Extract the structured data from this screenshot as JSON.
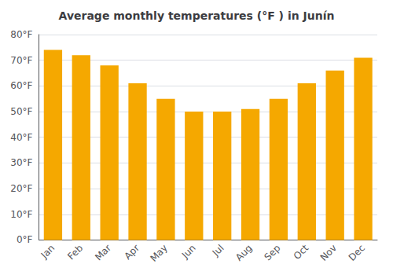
{
  "chart_data": {
    "type": "bar",
    "title": "Average monthly temperatures (°F ) in Junín",
    "categories": [
      "Jan",
      "Feb",
      "Mar",
      "Apr",
      "May",
      "Jun",
      "Jul",
      "Aug",
      "Sep",
      "Oct",
      "Nov",
      "Dec"
    ],
    "values": [
      74,
      72,
      68,
      61,
      55,
      50,
      50,
      51,
      55,
      61,
      66,
      71
    ],
    "color": "#F5A800",
    "ylim": [
      0,
      80
    ],
    "yticks": [
      {
        "value": 0,
        "label": "0°F"
      },
      {
        "value": 10,
        "label": "10°F"
      },
      {
        "value": 20,
        "label": "20°F"
      },
      {
        "value": 30,
        "label": "30°F"
      },
      {
        "value": 40,
        "label": "40°F"
      },
      {
        "value": 50,
        "label": "50°F"
      },
      {
        "value": 60,
        "label": "60°F"
      },
      {
        "value": 70,
        "label": "70°F"
      },
      {
        "value": 80,
        "label": "80°F"
      }
    ],
    "grid": true
  }
}
